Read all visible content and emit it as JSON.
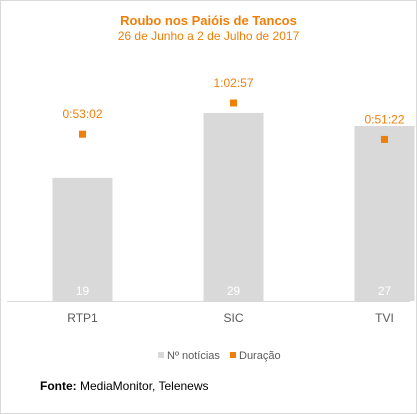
{
  "chart_data": {
    "type": "bar",
    "title": "Roubo nos Paióis de Tancos",
    "subtitle": "26 de Junho a 2 de Julho de 2017",
    "categories": [
      "RTP1",
      "SIC",
      "TVI"
    ],
    "series": [
      {
        "name": "Nº notícias",
        "kind": "bar",
        "color": "#d9d9d9",
        "values": [
          19,
          29,
          27
        ],
        "labels": [
          "19",
          "29",
          "27"
        ]
      },
      {
        "name": "Duração",
        "kind": "marker",
        "color": "#f07f09",
        "values_seconds": [
          3182,
          3777,
          3082
        ],
        "labels": [
          "0:53:02",
          "1:02:57",
          "0:51:22"
        ]
      }
    ],
    "legend_position": "bottom",
    "grid": false
  },
  "source": {
    "label": "Fonte:",
    "text": " MediaMonitor, Telenews"
  }
}
